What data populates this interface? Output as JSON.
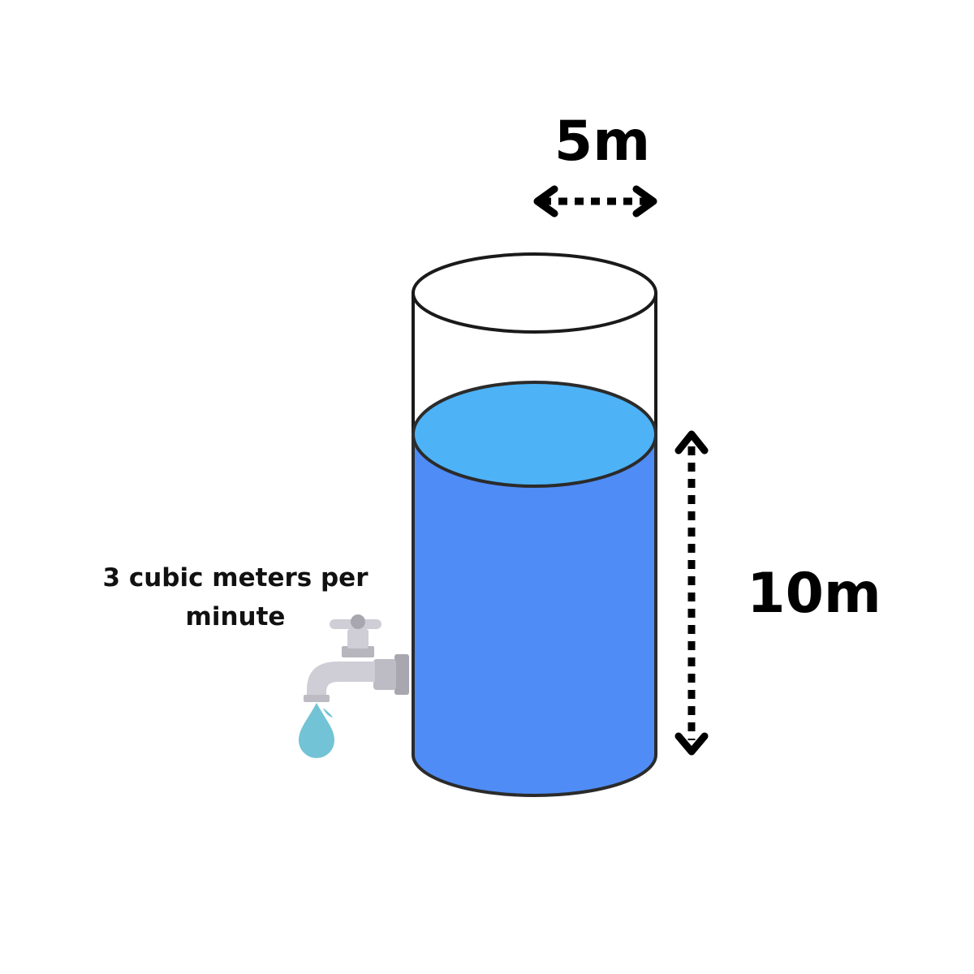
{
  "labels": {
    "width": "5m",
    "height": "10m",
    "flow_line1": "3 cubic meters per",
    "flow_line2": "minute"
  },
  "colors": {
    "water_body": "#4f8cf5",
    "water_surface": "#4eb2f6",
    "outline": "#2b2b2b",
    "tap_metal": "#cfcdd6",
    "tap_dark": "#a8a7b0",
    "drop": "#72c3d6"
  }
}
